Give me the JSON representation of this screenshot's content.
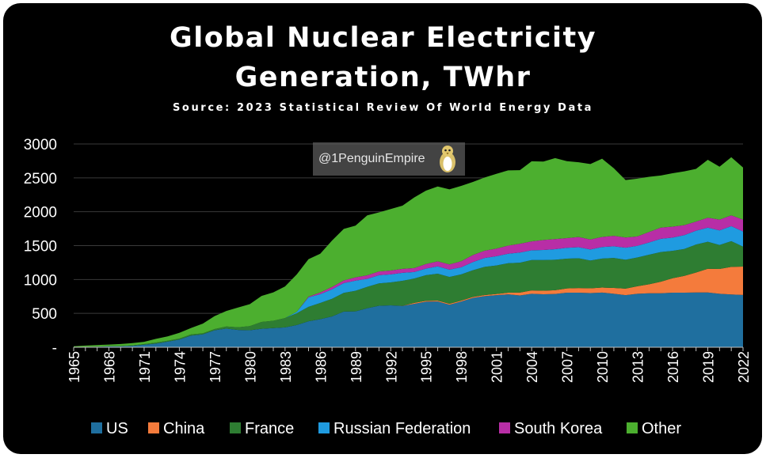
{
  "title_line1": "Global Nuclear Electricity",
  "title_line2": "Generation, TWhr",
  "subtitle": "Source: 2023 Statistical Review Of World Energy Data",
  "watermark": "@1PenguinEmpire",
  "watermark_icon": "penguin-icon",
  "chart_data": {
    "type": "area",
    "stacked": true,
    "title": "Global Nuclear Electricity Generation, TWhr",
    "subtitle": "Source: 2023 Statistical Review Of World Energy Data",
    "xlabel": "",
    "ylabel": "",
    "ylim": [
      0,
      3000
    ],
    "yticks": [
      0,
      500,
      1000,
      1500,
      2000,
      2500,
      3000
    ],
    "ytick_labels": [
      "-",
      "500",
      "1000",
      "1500",
      "2000",
      "2500",
      "3000"
    ],
    "xticks": [
      "1965",
      "1968",
      "1971",
      "1974",
      "1977",
      "1980",
      "1983",
      "1986",
      "1989",
      "1992",
      "1995",
      "1998",
      "2001",
      "2004",
      "2007",
      "2010",
      "2013",
      "2016",
      "2019",
      "2022"
    ],
    "legend_position": "bottom",
    "grid": true,
    "x": [
      1965,
      1966,
      1967,
      1968,
      1969,
      1970,
      1971,
      1972,
      1973,
      1974,
      1975,
      1976,
      1977,
      1978,
      1979,
      1980,
      1981,
      1982,
      1983,
      1984,
      1985,
      1986,
      1987,
      1988,
      1989,
      1990,
      1991,
      1992,
      1993,
      1994,
      1995,
      1996,
      1997,
      1998,
      1999,
      2000,
      2001,
      2002,
      2003,
      2004,
      2005,
      2006,
      2007,
      2008,
      2009,
      2010,
      2011,
      2012,
      2013,
      2014,
      2015,
      2016,
      2017,
      2018,
      2019,
      2020,
      2021,
      2022
    ],
    "series": [
      {
        "name": "US",
        "color": "#1f6f9f",
        "values": [
          4,
          6,
          8,
          13,
          14,
          22,
          38,
          54,
          83,
          114,
          172,
          191,
          251,
          276,
          255,
          251,
          273,
          283,
          294,
          328,
          384,
          414,
          455,
          527,
          529,
          577,
          613,
          619,
          610,
          640,
          673,
          675,
          628,
          674,
          728,
          754,
          769,
          780,
          764,
          789,
          782,
          787,
          806,
          806,
          799,
          807,
          790,
          769,
          789,
          797,
          797,
          806,
          805,
          808,
          809,
          790,
          779,
          772
        ]
      },
      {
        "name": "China",
        "color": "#f47b3c",
        "values": [
          0,
          0,
          0,
          0,
          0,
          0,
          0,
          0,
          0,
          0,
          0,
          0,
          0,
          0,
          0,
          0,
          0,
          0,
          0,
          0,
          0,
          0,
          0,
          0,
          0,
          0,
          0,
          0,
          2,
          15,
          13,
          14,
          14,
          14,
          15,
          17,
          17,
          25,
          43,
          50,
          53,
          55,
          62,
          68,
          70,
          74,
          86,
          97,
          112,
          133,
          171,
          213,
          248,
          295,
          349,
          366,
          408,
          418
        ]
      },
      {
        "name": "France",
        "color": "#2e7d32",
        "values": [
          1,
          1,
          2,
          3,
          4,
          5,
          9,
          14,
          14,
          14,
          18,
          15,
          18,
          30,
          40,
          61,
          100,
          108,
          136,
          174,
          213,
          240,
          260,
          275,
          304,
          314,
          330,
          338,
          368,
          359,
          377,
          397,
          396,
          388,
          394,
          415,
          421,
          436,
          441,
          448,
          452,
          450,
          440,
          439,
          410,
          428,
          442,
          425,
          424,
          436,
          437,
          403,
          398,
          413,
          399,
          353,
          379,
          295
        ]
      },
      {
        "name": "Russian Federation",
        "color": "#1f9be0",
        "values": [
          0,
          0,
          0,
          0,
          0,
          0,
          0,
          0,
          0,
          0,
          0,
          0,
          0,
          0,
          0,
          0,
          0,
          0,
          0,
          20,
          140,
          130,
          140,
          145,
          150,
          118,
          120,
          119,
          119,
          97,
          99,
          108,
          108,
          104,
          121,
          131,
          137,
          140,
          150,
          145,
          149,
          156,
          160,
          163,
          164,
          170,
          172,
          178,
          172,
          180,
          195,
          196,
          203,
          205,
          208,
          215,
          222,
          223
        ]
      },
      {
        "name": "South Korea",
        "color": "#b82ea6",
        "values": [
          0,
          0,
          0,
          0,
          0,
          0,
          0,
          0,
          0,
          0,
          0,
          0,
          0,
          0,
          0,
          0,
          0,
          0,
          0,
          0,
          10,
          25,
          35,
          40,
          48,
          53,
          56,
          57,
          58,
          58,
          67,
          74,
          77,
          90,
          103,
          109,
          112,
          119,
          130,
          131,
          147,
          148,
          143,
          151,
          148,
          149,
          155,
          150,
          139,
          156,
          165,
          162,
          148,
          134,
          146,
          160,
          158,
          176
        ]
      },
      {
        "name": "Other",
        "color": "#4caf2f",
        "values": [
          10,
          18,
          22,
          24,
          30,
          35,
          33,
          56,
          63,
          85,
          95,
          143,
          191,
          230,
          292,
          324,
          385,
          419,
          467,
          553,
          553,
          572,
          684,
          760,
          764,
          885,
          871,
          907,
          933,
          1041,
          1083,
          1105,
          1107,
          1111,
          1079,
          1080,
          1104,
          1111,
          1086,
          1181,
          1158,
          1195,
          1135,
          1103,
          1113,
          1154,
          996,
          848,
          852,
          814,
          769,
          788,
          794,
          778,
          855,
          780,
          858,
          768
        ]
      }
    ]
  },
  "legend": [
    {
      "label": "US",
      "color": "#1f6f9f"
    },
    {
      "label": "China",
      "color": "#f47b3c"
    },
    {
      "label": "France",
      "color": "#2e7d32"
    },
    {
      "label": "Russian Federation",
      "color": "#1f9be0"
    },
    {
      "label": "South Korea",
      "color": "#b82ea6"
    },
    {
      "label": "Other",
      "color": "#4caf2f"
    }
  ]
}
